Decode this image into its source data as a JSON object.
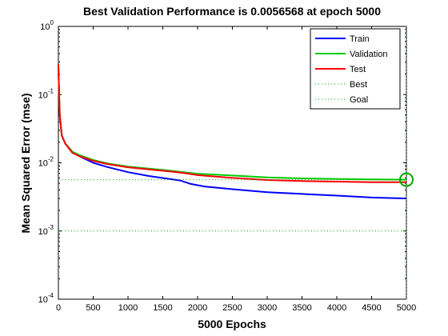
{
  "chart_data": {
    "type": "line",
    "title": "Best Validation Performance is 0.0056568 at epoch 5000",
    "xlabel": "5000 Epochs",
    "ylabel": "Mean Squared Error  (mse)",
    "xlim": [
      0,
      5000
    ],
    "ylim": [
      0.0001,
      1
    ],
    "yscale": "log",
    "x_ticks": [
      0,
      500,
      1000,
      1500,
      2000,
      2500,
      3000,
      3500,
      4000,
      4500,
      5000
    ],
    "y_ticks": [
      0.0001,
      0.001,
      0.01,
      0.1,
      1
    ],
    "x_tick_labels": [
      "0",
      "500",
      "1000",
      "1500",
      "2000",
      "2500",
      "3000",
      "3500",
      "4000",
      "4500",
      "5000"
    ],
    "y_tick_labels": [
      {
        "base": "10",
        "exp": "-4"
      },
      {
        "base": "10",
        "exp": "-3"
      },
      {
        "base": "10",
        "exp": "-2"
      },
      {
        "base": "10",
        "exp": "-1"
      },
      {
        "base": "10",
        "exp": "0"
      }
    ],
    "legend_position": "top-right",
    "series": [
      {
        "name": "Train",
        "color": "#0000ff",
        "style": "solid",
        "x": [
          0,
          10,
          20,
          50,
          100,
          200,
          300,
          500,
          700,
          1000,
          1300,
          1600,
          1750,
          1900,
          2100,
          2500,
          3000,
          3500,
          4000,
          4500,
          5000
        ],
        "y": [
          0.27,
          0.1,
          0.05,
          0.025,
          0.019,
          0.0145,
          0.0125,
          0.01,
          0.0087,
          0.0073,
          0.0064,
          0.0058,
          0.0055,
          0.0049,
          0.0045,
          0.0041,
          0.0037,
          0.0035,
          0.0033,
          0.0031,
          0.003
        ]
      },
      {
        "name": "Validation",
        "color": "#00cc00",
        "style": "solid",
        "x": [
          0,
          10,
          20,
          50,
          100,
          200,
          300,
          500,
          700,
          1000,
          1300,
          1600,
          1800,
          2000,
          2500,
          3000,
          3500,
          4000,
          4500,
          5000
        ],
        "y": [
          0.25,
          0.1,
          0.05,
          0.025,
          0.019,
          0.0145,
          0.013,
          0.011,
          0.0098,
          0.0088,
          0.0082,
          0.0077,
          0.0073,
          0.0069,
          0.0065,
          0.0061,
          0.0059,
          0.0058,
          0.0057,
          0.0056568
        ]
      },
      {
        "name": "Test",
        "color": "#ff0000",
        "style": "solid",
        "x": [
          0,
          10,
          20,
          50,
          100,
          200,
          300,
          500,
          700,
          1000,
          1300,
          1600,
          1800,
          2000,
          2500,
          3000,
          3500,
          4000,
          4500,
          5000
        ],
        "y": [
          0.28,
          0.1,
          0.05,
          0.025,
          0.019,
          0.014,
          0.0125,
          0.0107,
          0.0096,
          0.0086,
          0.008,
          0.0075,
          0.0071,
          0.0066,
          0.006,
          0.0056,
          0.0054,
          0.0053,
          0.0052,
          0.0052
        ]
      },
      {
        "name": "Best",
        "color": "#00aa00",
        "style": "dotted",
        "x": [
          5000
        ],
        "y": [
          0.0056568
        ]
      },
      {
        "name": "Goal",
        "color": "#00aa00",
        "style": "dotted",
        "y_value": 0.001
      }
    ],
    "best_marker": {
      "x": 5000,
      "y": 0.0056568,
      "color": "#00aa00",
      "shape": "circle"
    }
  }
}
